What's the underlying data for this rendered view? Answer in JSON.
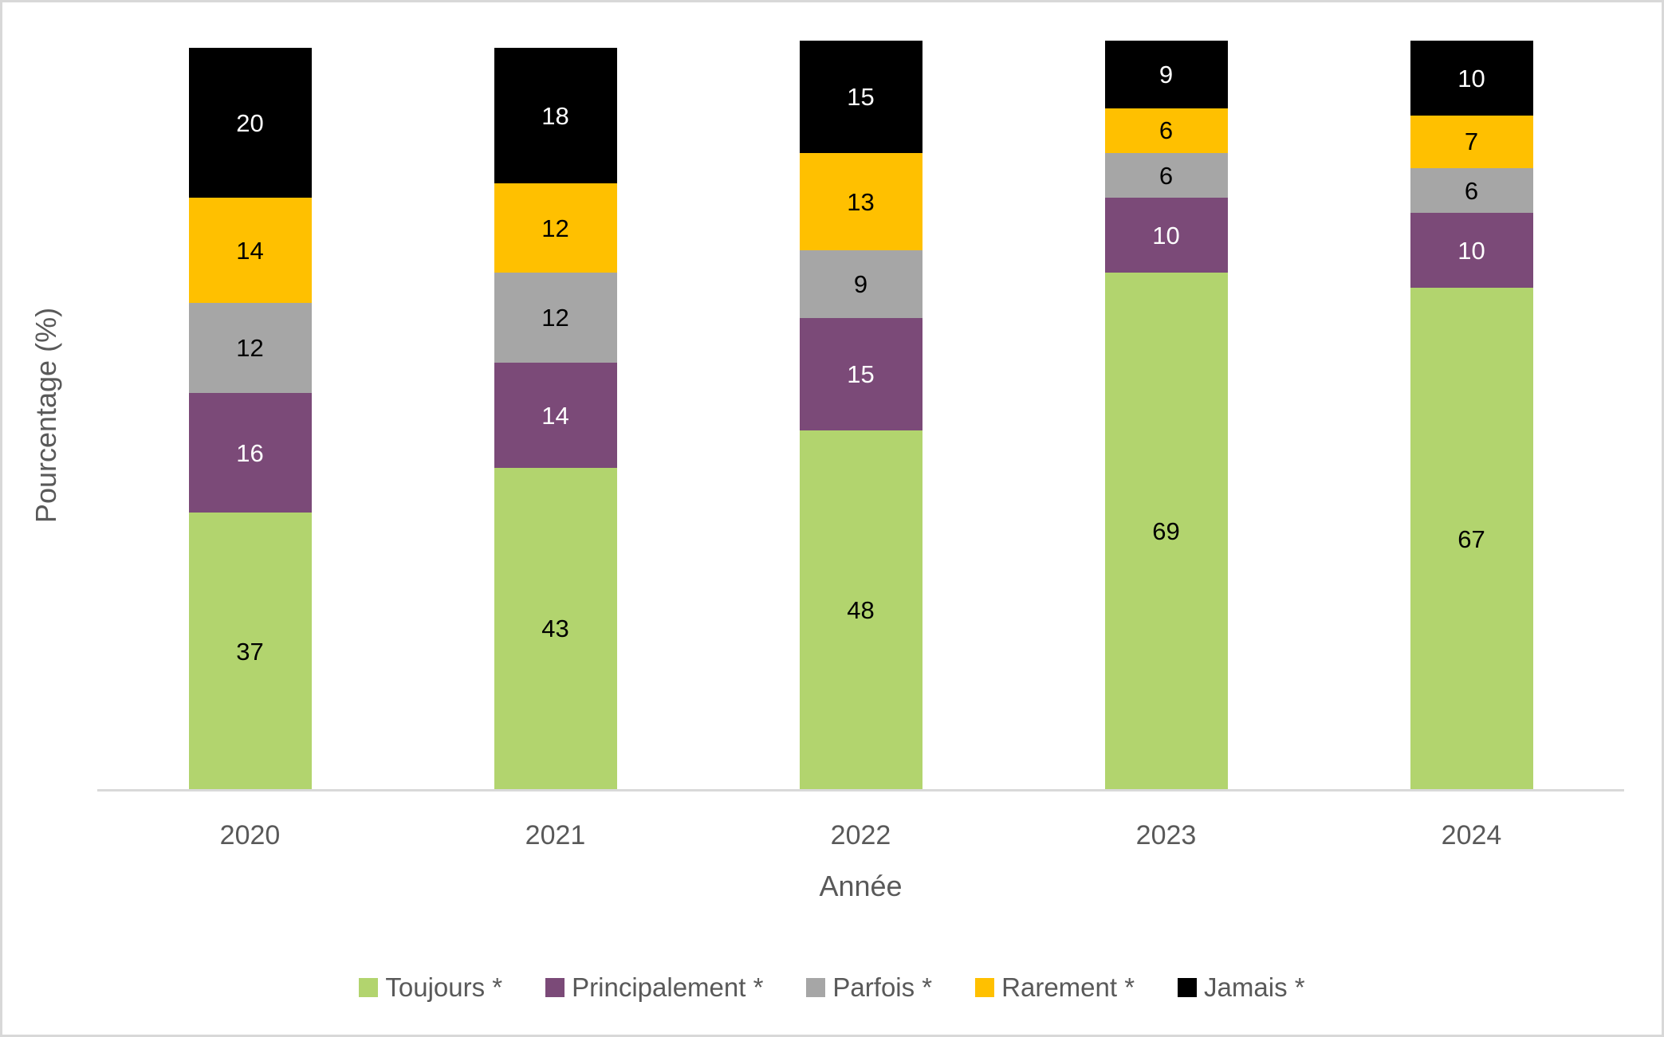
{
  "chart_data": {
    "type": "bar",
    "stacked": true,
    "title": "",
    "xlabel": "Année",
    "ylabel": "Pourcentage (%)",
    "ylim": [
      0,
      100
    ],
    "grid": false,
    "legend_position": "bottom",
    "categories": [
      "2020",
      "2021",
      "2022",
      "2023",
      "2024"
    ],
    "series": [
      {
        "key": "toujours",
        "name": "Toujours *",
        "color": "#b2d46e",
        "label_color": "#000000",
        "values": [
          37,
          43,
          48,
          69,
          67
        ]
      },
      {
        "key": "principalement",
        "name": "Principalement *",
        "color": "#7b4a78",
        "label_color": "#ffffff",
        "values": [
          16,
          14,
          15,
          10,
          10
        ]
      },
      {
        "key": "parfois",
        "name": "Parfois *",
        "color": "#a6a6a6",
        "label_color": "#000000",
        "values": [
          12,
          12,
          9,
          6,
          6
        ]
      },
      {
        "key": "rarement",
        "name": "Rarement *",
        "color": "#ffc000",
        "label_color": "#000000",
        "values": [
          14,
          12,
          13,
          6,
          7
        ]
      },
      {
        "key": "jamais",
        "name": "Jamais *",
        "color": "#000000",
        "label_color": "#ffffff",
        "values": [
          20,
          18,
          15,
          9,
          10
        ]
      }
    ]
  },
  "style": {
    "axis_line_color": "#d9d9d9",
    "page_border_color": "#d8d8d8",
    "text_color": "#595959",
    "background": "#ffffff"
  }
}
